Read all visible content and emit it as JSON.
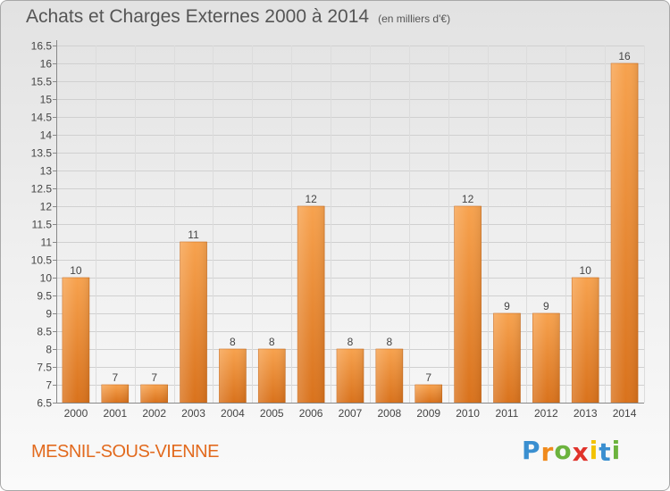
{
  "title": "Achats et Charges Externes 2000 à 2014",
  "unit_label": "(en milliers d'€)",
  "commune": "MESNIL-SOUS-VIENNE",
  "brand": {
    "text": "Proxiti",
    "letters": [
      "P",
      "r",
      "o",
      "x",
      "i",
      "t",
      "i"
    ],
    "colors": [
      "#3a8fd0",
      "#f08a1c",
      "#6cb33e",
      "#e0332b",
      "#f2c200",
      "#3a8fd0",
      "#6cb33e"
    ]
  },
  "colors": {
    "bar_light": "#f7a24e",
    "bar_dark": "#d9721c",
    "title": "#555555",
    "commune": "#e26a1e"
  },
  "chart_data": {
    "type": "bar",
    "title": "Achats et Charges Externes 2000 à 2014",
    "subtitle": "(en milliers d'€)",
    "xlabel": "",
    "ylabel": "",
    "categories": [
      "2000",
      "2001",
      "2002",
      "2003",
      "2004",
      "2005",
      "2006",
      "2007",
      "2008",
      "2009",
      "2010",
      "2011",
      "2012",
      "2013",
      "2014"
    ],
    "values": [
      10,
      7,
      7,
      11,
      8,
      8,
      12,
      8,
      8,
      7,
      12,
      9,
      9,
      10,
      16
    ],
    "data_labels": [
      "10",
      "7",
      "7",
      "11",
      "8",
      "8",
      "12",
      "8",
      "8",
      "7",
      "12",
      "9",
      "9",
      "10",
      "16"
    ],
    "ylim": [
      6.5,
      16.5
    ],
    "yticks": [
      6.5,
      7,
      7.5,
      8,
      8.5,
      9,
      9.5,
      10,
      10.5,
      11,
      11.5,
      12,
      12.5,
      13,
      13.5,
      14,
      14.5,
      15,
      15.5,
      16,
      16.5
    ],
    "ytick_labels": [
      "6.5",
      "7",
      "7.5",
      "8",
      "8.5",
      "9",
      "9.5",
      "10",
      "10.5",
      "11",
      "11.5",
      "12",
      "12.5",
      "13",
      "13.5",
      "14",
      "14.5",
      "15",
      "15.5",
      "16",
      "16.5"
    ],
    "grid": true,
    "legend": "none"
  }
}
